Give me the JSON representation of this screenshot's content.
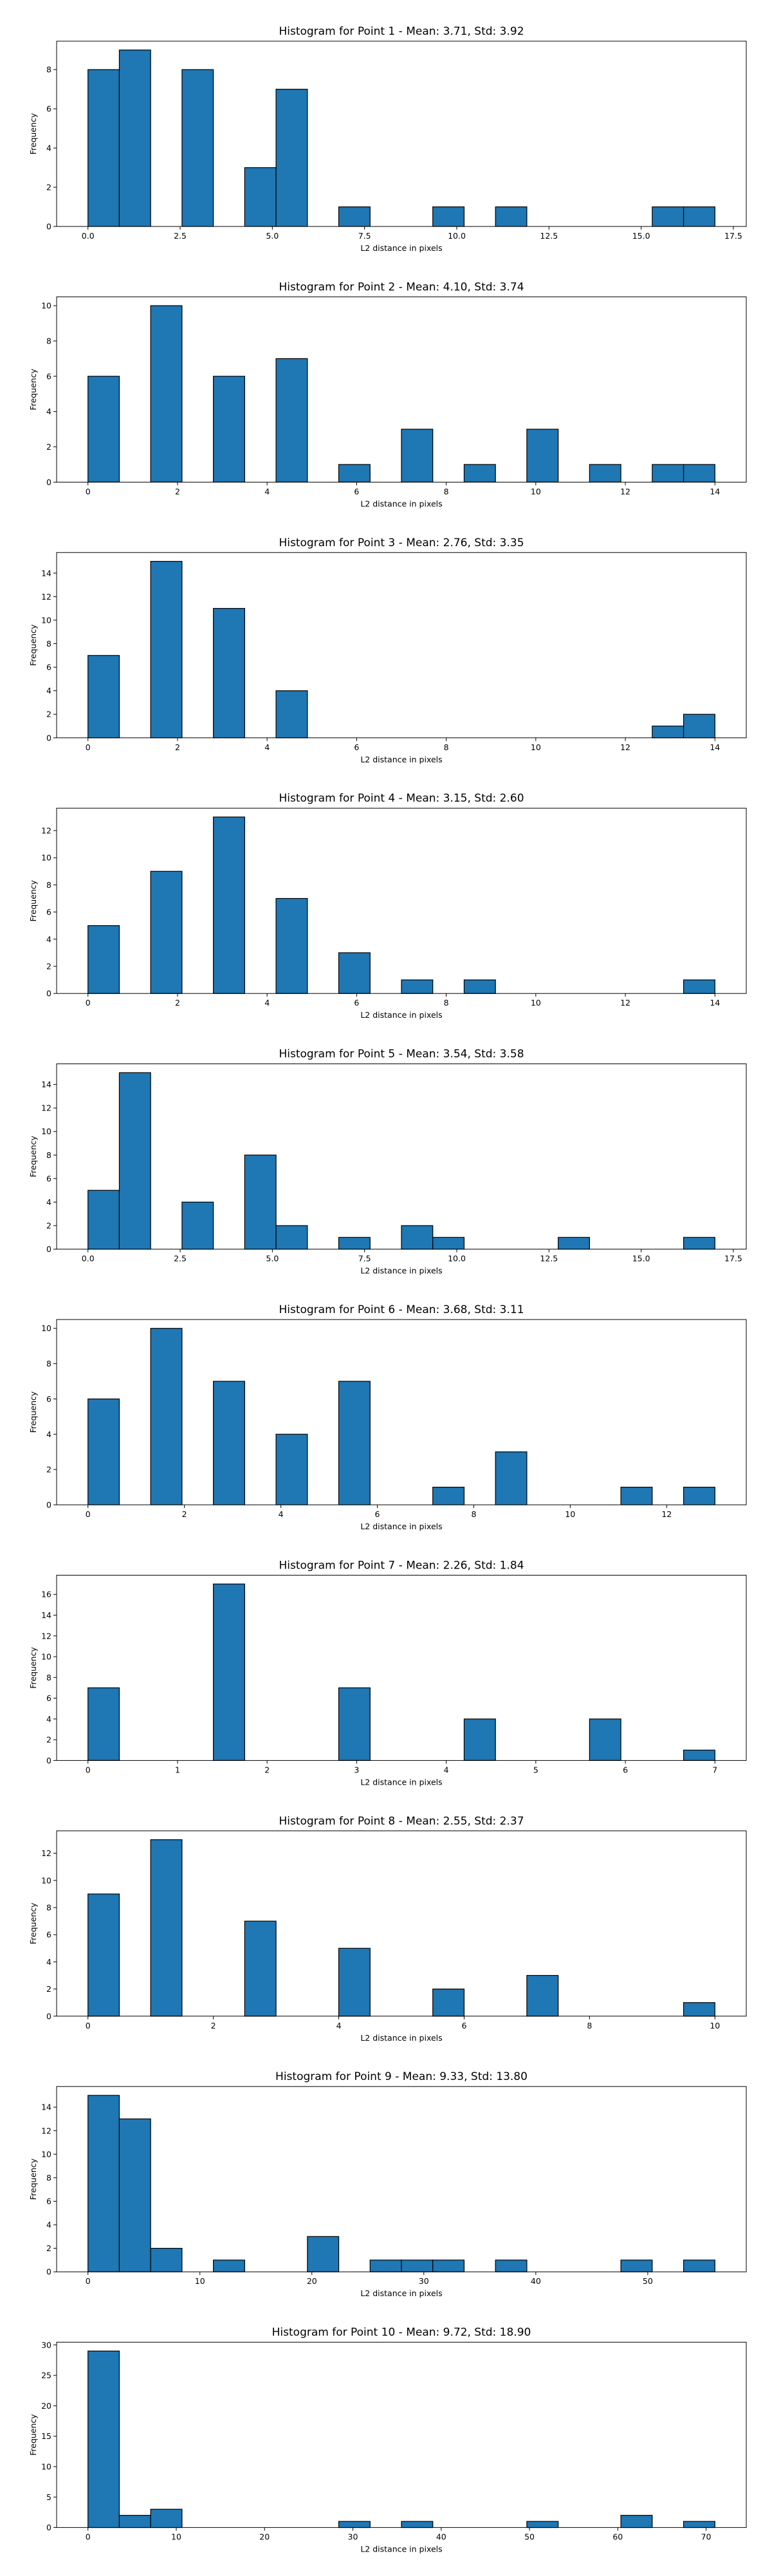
{
  "chart_data": [
    {
      "type": "bar",
      "title": "Histogram for Point 1 - Mean: 3.71, Std: 3.92",
      "xlabel": "L2 distance in pixels",
      "ylabel": "Frequency",
      "xlim": [
        -0.85,
        17.85
      ],
      "ylim": [
        0,
        9.45
      ],
      "xticks": [
        0,
        2.5,
        5,
        7.5,
        10,
        12.5,
        15,
        17.5
      ],
      "xtick_labels": [
        "0.0",
        "2.5",
        "5.0",
        "7.5",
        "10.0",
        "12.5",
        "15.0",
        "17.5"
      ],
      "yticks": [
        0,
        2,
        4,
        6,
        8
      ],
      "bins": [
        {
          "x0": 0.0,
          "x1": 0.85,
          "count": 8
        },
        {
          "x0": 0.85,
          "x1": 1.7,
          "count": 9
        },
        {
          "x0": 2.55,
          "x1": 3.4,
          "count": 8
        },
        {
          "x0": 4.25,
          "x1": 5.1,
          "count": 3
        },
        {
          "x0": 5.1,
          "x1": 5.95,
          "count": 7
        },
        {
          "x0": 6.8,
          "x1": 7.65,
          "count": 1
        },
        {
          "x0": 9.35,
          "x1": 10.2,
          "count": 1
        },
        {
          "x0": 11.05,
          "x1": 11.9,
          "count": 1
        },
        {
          "x0": 15.3,
          "x1": 16.15,
          "count": 1
        },
        {
          "x0": 16.15,
          "x1": 17.0,
          "count": 1
        }
      ]
    },
    {
      "type": "bar",
      "title": "Histogram for Point 2 - Mean: 4.10, Std: 3.74",
      "xlabel": "L2 distance in pixels",
      "ylabel": "Frequency",
      "xlim": [
        -0.7,
        14.7
      ],
      "ylim": [
        0,
        10.5
      ],
      "xticks": [
        0,
        2,
        4,
        6,
        8,
        10,
        12,
        14
      ],
      "xtick_labels": [
        "0",
        "2",
        "4",
        "6",
        "8",
        "10",
        "12",
        "14"
      ],
      "yticks": [
        0,
        2,
        4,
        6,
        8,
        10
      ],
      "bins": [
        {
          "x0": 0.0,
          "x1": 0.7,
          "count": 6
        },
        {
          "x0": 1.4,
          "x1": 2.1,
          "count": 10
        },
        {
          "x0": 2.8,
          "x1": 3.5,
          "count": 6
        },
        {
          "x0": 4.2,
          "x1": 4.9,
          "count": 7
        },
        {
          "x0": 5.6,
          "x1": 6.3,
          "count": 1
        },
        {
          "x0": 7.0,
          "x1": 7.7,
          "count": 3
        },
        {
          "x0": 8.4,
          "x1": 9.1,
          "count": 1
        },
        {
          "x0": 9.8,
          "x1": 10.5,
          "count": 3
        },
        {
          "x0": 11.2,
          "x1": 11.9,
          "count": 1
        },
        {
          "x0": 12.6,
          "x1": 13.3,
          "count": 1
        },
        {
          "x0": 13.3,
          "x1": 14.0,
          "count": 1
        }
      ]
    },
    {
      "type": "bar",
      "title": "Histogram for Point 3 - Mean: 2.76, Std: 3.35",
      "xlabel": "L2 distance in pixels",
      "ylabel": "Frequency",
      "xlim": [
        -0.7,
        14.7
      ],
      "ylim": [
        0,
        15.75
      ],
      "xticks": [
        0,
        2,
        4,
        6,
        8,
        10,
        12,
        14
      ],
      "xtick_labels": [
        "0",
        "2",
        "4",
        "6",
        "8",
        "10",
        "12",
        "14"
      ],
      "yticks": [
        0,
        2,
        4,
        6,
        8,
        10,
        12,
        14
      ],
      "bins": [
        {
          "x0": 0.0,
          "x1": 0.7,
          "count": 7
        },
        {
          "x0": 1.4,
          "x1": 2.1,
          "count": 15
        },
        {
          "x0": 2.8,
          "x1": 3.5,
          "count": 11
        },
        {
          "x0": 4.2,
          "x1": 4.9,
          "count": 4
        },
        {
          "x0": 12.6,
          "x1": 13.3,
          "count": 1
        },
        {
          "x0": 13.3,
          "x1": 14.0,
          "count": 2
        }
      ]
    },
    {
      "type": "bar",
      "title": "Histogram for Point 4 - Mean: 3.15, Std: 2.60",
      "xlabel": "L2 distance in pixels",
      "ylabel": "Frequency",
      "xlim": [
        -0.7,
        14.7
      ],
      "ylim": [
        0,
        13.65
      ],
      "xticks": [
        0,
        2,
        4,
        6,
        8,
        10,
        12,
        14
      ],
      "xtick_labels": [
        "0",
        "2",
        "4",
        "6",
        "8",
        "10",
        "12",
        "14"
      ],
      "yticks": [
        0,
        2,
        4,
        6,
        8,
        10,
        12
      ],
      "bins": [
        {
          "x0": 0.0,
          "x1": 0.7,
          "count": 5
        },
        {
          "x0": 1.4,
          "x1": 2.1,
          "count": 9
        },
        {
          "x0": 2.8,
          "x1": 3.5,
          "count": 13
        },
        {
          "x0": 4.2,
          "x1": 4.9,
          "count": 7
        },
        {
          "x0": 5.6,
          "x1": 6.3,
          "count": 3
        },
        {
          "x0": 7.0,
          "x1": 7.7,
          "count": 1
        },
        {
          "x0": 8.4,
          "x1": 9.1,
          "count": 1
        },
        {
          "x0": 13.3,
          "x1": 14.0,
          "count": 1
        }
      ]
    },
    {
      "type": "bar",
      "title": "Histogram for Point 5 - Mean: 3.54, Std: 3.58",
      "xlabel": "L2 distance in pixels",
      "ylabel": "Frequency",
      "xlim": [
        -0.85,
        17.85
      ],
      "ylim": [
        0,
        15.75
      ],
      "xticks": [
        0,
        2.5,
        5,
        7.5,
        10,
        12.5,
        15,
        17.5
      ],
      "xtick_labels": [
        "0.0",
        "2.5",
        "5.0",
        "7.5",
        "10.0",
        "12.5",
        "15.0",
        "17.5"
      ],
      "yticks": [
        0,
        2,
        4,
        6,
        8,
        10,
        12,
        14
      ],
      "bins": [
        {
          "x0": 0.0,
          "x1": 0.85,
          "count": 5
        },
        {
          "x0": 0.85,
          "x1": 1.7,
          "count": 15
        },
        {
          "x0": 2.55,
          "x1": 3.4,
          "count": 4
        },
        {
          "x0": 4.25,
          "x1": 5.1,
          "count": 8
        },
        {
          "x0": 5.1,
          "x1": 5.95,
          "count": 2
        },
        {
          "x0": 6.8,
          "x1": 7.65,
          "count": 1
        },
        {
          "x0": 8.5,
          "x1": 9.35,
          "count": 2
        },
        {
          "x0": 9.35,
          "x1": 10.2,
          "count": 1
        },
        {
          "x0": 11.9,
          "x1": 12.75,
          "count": 0
        },
        {
          "x0": 12.75,
          "x1": 13.6,
          "count": 1
        },
        {
          "x0": 16.15,
          "x1": 17.0,
          "count": 1
        }
      ]
    },
    {
      "type": "bar",
      "title": "Histogram for Point 6 - Mean: 3.68, Std: 3.11",
      "xlabel": "L2 distance in pixels",
      "ylabel": "Frequency",
      "xlim": [
        -0.65,
        13.65
      ],
      "ylim": [
        0,
        10.5
      ],
      "xticks": [
        0,
        2,
        4,
        6,
        8,
        10,
        12
      ],
      "xtick_labels": [
        "0",
        "2",
        "4",
        "6",
        "8",
        "10",
        "12"
      ],
      "yticks": [
        0,
        2,
        4,
        6,
        8,
        10
      ],
      "bins": [
        {
          "x0": 0.0,
          "x1": 0.65,
          "count": 6
        },
        {
          "x0": 1.3,
          "x1": 1.95,
          "count": 10
        },
        {
          "x0": 2.6,
          "x1": 3.25,
          "count": 7
        },
        {
          "x0": 3.9,
          "x1": 4.55,
          "count": 4
        },
        {
          "x0": 5.2,
          "x1": 5.85,
          "count": 7
        },
        {
          "x0": 7.15,
          "x1": 7.8,
          "count": 1
        },
        {
          "x0": 8.45,
          "x1": 9.1,
          "count": 3
        },
        {
          "x0": 11.05,
          "x1": 11.7,
          "count": 1
        },
        {
          "x0": 12.35,
          "x1": 13.0,
          "count": 1
        }
      ]
    },
    {
      "type": "bar",
      "title": "Histogram for Point 7 - Mean: 2.26, Std: 1.84",
      "xlabel": "L2 distance in pixels",
      "ylabel": "Frequency",
      "xlim": [
        -0.35,
        7.35
      ],
      "ylim": [
        0,
        17.85
      ],
      "xticks": [
        0,
        1,
        2,
        3,
        4,
        5,
        6,
        7
      ],
      "xtick_labels": [
        "0",
        "1",
        "2",
        "3",
        "4",
        "5",
        "6",
        "7"
      ],
      "yticks": [
        0,
        2,
        4,
        6,
        8,
        10,
        12,
        14,
        16
      ],
      "bins": [
        {
          "x0": 0.0,
          "x1": 0.35,
          "count": 7
        },
        {
          "x0": 1.4,
          "x1": 1.75,
          "count": 17
        },
        {
          "x0": 2.8,
          "x1": 3.15,
          "count": 7
        },
        {
          "x0": 4.2,
          "x1": 4.55,
          "count": 4
        },
        {
          "x0": 5.6,
          "x1": 5.95,
          "count": 4
        },
        {
          "x0": 6.65,
          "x1": 7.0,
          "count": 1
        }
      ]
    },
    {
      "type": "bar",
      "title": "Histogram for Point 8 - Mean: 2.55, Std: 2.37",
      "xlabel": "L2 distance in pixels",
      "ylabel": "Frequency",
      "xlim": [
        -0.5,
        10.5
      ],
      "ylim": [
        0,
        13.65
      ],
      "xticks": [
        0,
        2,
        4,
        6,
        8,
        10
      ],
      "xtick_labels": [
        "0",
        "2",
        "4",
        "6",
        "8",
        "10"
      ],
      "yticks": [
        0,
        2,
        4,
        6,
        8,
        10,
        12
      ],
      "bins": [
        {
          "x0": 0.0,
          "x1": 0.5,
          "count": 9
        },
        {
          "x0": 1.0,
          "x1": 1.5,
          "count": 13
        },
        {
          "x0": 2.5,
          "x1": 3.0,
          "count": 7
        },
        {
          "x0": 4.0,
          "x1": 4.5,
          "count": 5
        },
        {
          "x0": 5.5,
          "x1": 6.0,
          "count": 2
        },
        {
          "x0": 7.0,
          "x1": 7.5,
          "count": 3
        },
        {
          "x0": 9.5,
          "x1": 10.0,
          "count": 1
        }
      ]
    },
    {
      "type": "bar",
      "title": "Histogram for Point 9 - Mean: 9.33, Std: 13.80",
      "xlabel": "L2 distance in pixels",
      "ylabel": "Frequency",
      "xlim": [
        -2.8,
        58.8
      ],
      "ylim": [
        0,
        15.75
      ],
      "xticks": [
        0,
        10,
        20,
        30,
        40,
        50
      ],
      "xtick_labels": [
        "0",
        "10",
        "20",
        "30",
        "40",
        "50"
      ],
      "yticks": [
        0,
        2,
        4,
        6,
        8,
        10,
        12,
        14
      ],
      "bins": [
        {
          "x0": 0.0,
          "x1": 2.8,
          "count": 15
        },
        {
          "x0": 2.8,
          "x1": 5.6,
          "count": 13
        },
        {
          "x0": 5.6,
          "x1": 8.4,
          "count": 2
        },
        {
          "x0": 11.2,
          "x1": 14.0,
          "count": 1
        },
        {
          "x0": 19.6,
          "x1": 22.4,
          "count": 3
        },
        {
          "x0": 25.2,
          "x1": 28.0,
          "count": 1
        },
        {
          "x0": 28.0,
          "x1": 30.8,
          "count": 1
        },
        {
          "x0": 30.8,
          "x1": 33.6,
          "count": 1
        },
        {
          "x0": 36.4,
          "x1": 39.2,
          "count": 1
        },
        {
          "x0": 47.6,
          "x1": 50.4,
          "count": 1
        },
        {
          "x0": 53.2,
          "x1": 56.0,
          "count": 1
        }
      ]
    },
    {
      "type": "bar",
      "title": "Histogram for Point 10 - Mean: 9.72, Std: 18.90",
      "xlabel": "L2 distance in pixels",
      "ylabel": "Frequency",
      "xlim": [
        -3.55,
        74.55
      ],
      "ylim": [
        0,
        30.45
      ],
      "xticks": [
        0,
        10,
        20,
        30,
        40,
        50,
        60,
        70
      ],
      "xtick_labels": [
        "0",
        "10",
        "20",
        "30",
        "40",
        "50",
        "60",
        "70"
      ],
      "yticks": [
        0,
        5,
        10,
        15,
        20,
        25,
        30
      ],
      "bins": [
        {
          "x0": 0.0,
          "x1": 3.55,
          "count": 29
        },
        {
          "x0": 3.55,
          "x1": 7.1,
          "count": 2
        },
        {
          "x0": 7.1,
          "x1": 10.65,
          "count": 3
        },
        {
          "x0": 28.4,
          "x1": 31.95,
          "count": 1
        },
        {
          "x0": 35.5,
          "x1": 39.05,
          "count": 1
        },
        {
          "x0": 49.7,
          "x1": 53.25,
          "count": 1
        },
        {
          "x0": 60.35,
          "x1": 63.9,
          "count": 2
        },
        {
          "x0": 67.45,
          "x1": 71.0,
          "count": 1
        }
      ]
    }
  ],
  "colors": {
    "bar_fill": "#1f77b4",
    "bar_edge": "#000000",
    "axis": "#000000"
  }
}
